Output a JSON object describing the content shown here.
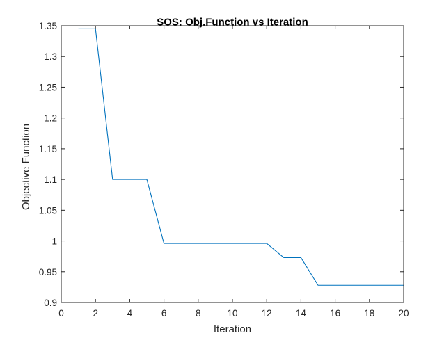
{
  "chart_data": {
    "type": "line",
    "title": "SOS: Obj.Function vs Iteration",
    "xlabel": "Iteration",
    "ylabel": "Objective Function",
    "xlim": [
      0,
      20
    ],
    "ylim": [
      0.9,
      1.35
    ],
    "xticks": [
      0,
      2,
      4,
      6,
      8,
      10,
      12,
      14,
      16,
      18,
      20
    ],
    "xtick_labels": [
      "0",
      "2",
      "4",
      "6",
      "8",
      "10",
      "12",
      "14",
      "16",
      "18",
      "20"
    ],
    "yticks": [
      0.9,
      0.95,
      1.0,
      1.05,
      1.1,
      1.15,
      1.2,
      1.25,
      1.3,
      1.35
    ],
    "ytick_labels": [
      "0.9",
      "0.95",
      "1",
      "1.05",
      "1.1",
      "1.15",
      "1.2",
      "1.25",
      "1.3",
      "1.35"
    ],
    "grid": false,
    "legend": "none",
    "series": [
      {
        "color": "#0072bd",
        "x": [
          1,
          2,
          3,
          4,
          5,
          6,
          7,
          8,
          9,
          10,
          11,
          12,
          13,
          14,
          15,
          16,
          17,
          18,
          19,
          20
        ],
        "y": [
          1.345,
          1.345,
          1.1,
          1.1,
          1.1,
          0.996,
          0.996,
          0.996,
          0.996,
          0.996,
          0.996,
          0.996,
          0.973,
          0.973,
          0.928,
          0.928,
          0.928,
          0.928,
          0.928,
          0.928
        ]
      }
    ]
  }
}
